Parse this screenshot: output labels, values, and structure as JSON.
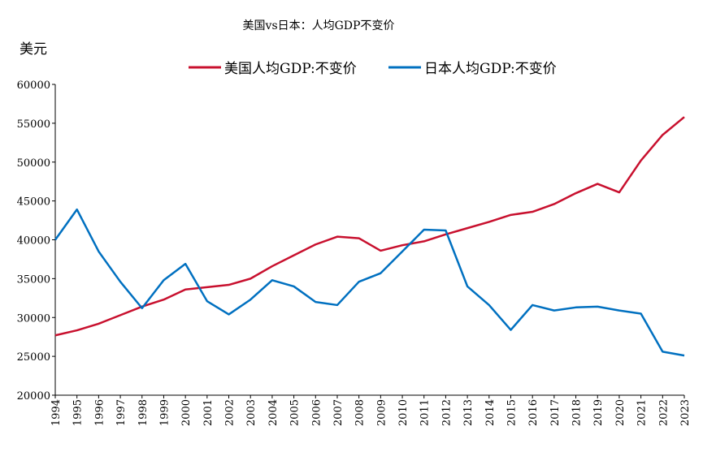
{
  "chart_data": {
    "type": "line",
    "title": "美国vs日本：人均GDP不变价",
    "ylabel": "美元",
    "xlabel": "",
    "ylim": [
      20000,
      60000
    ],
    "yticks": [
      20000,
      25000,
      30000,
      35000,
      40000,
      45000,
      50000,
      55000,
      60000
    ],
    "legend_position": "top",
    "grid": false,
    "x": [
      1994,
      1995,
      1996,
      1997,
      1998,
      1999,
      2000,
      2001,
      2002,
      2003,
      2004,
      2005,
      2006,
      2007,
      2008,
      2009,
      2010,
      2011,
      2012,
      2013,
      2014,
      2015,
      2016,
      2017,
      2018,
      2019,
      2020,
      2021,
      2022,
      2023
    ],
    "series": [
      {
        "name": "美国人均GDP:不变价",
        "color": "#c8102e",
        "values": [
          27700,
          28350,
          29200,
          30300,
          31400,
          32300,
          33600,
          33900,
          34200,
          35000,
          36600,
          38000,
          39400,
          40400,
          40200,
          38600,
          39300,
          39800,
          40700,
          41500,
          42300,
          43200,
          43600,
          44600,
          46000,
          47200,
          46100,
          50200,
          53500,
          55800
        ]
      },
      {
        "name": "日本人均GDP:不变价",
        "color": "#0070c0",
        "values": [
          40000,
          43900,
          38500,
          34600,
          31200,
          34800,
          36900,
          32100,
          30400,
          32300,
          34800,
          34000,
          32000,
          31600,
          34600,
          35700,
          38500,
          41300,
          41200,
          34000,
          31600,
          28400,
          31600,
          30900,
          31300,
          31400,
          30900,
          30500,
          25600,
          25100
        ]
      }
    ]
  }
}
